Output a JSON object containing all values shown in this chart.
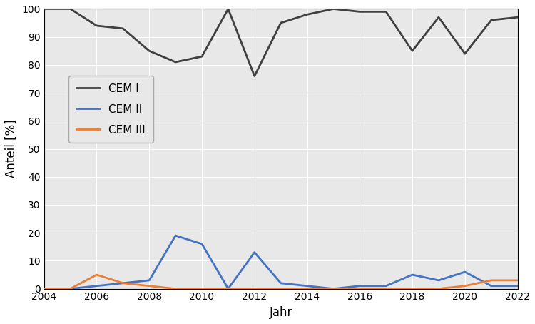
{
  "years_cem1": [
    2004,
    2005,
    2006,
    2007,
    2008,
    2009,
    2010,
    2011,
    2012,
    2013,
    2014,
    2015,
    2016,
    2017,
    2018,
    2019,
    2020,
    2021,
    2022
  ],
  "cem1": [
    100,
    100,
    94,
    93,
    85,
    81,
    83,
    100,
    76,
    95,
    98,
    100,
    99,
    99,
    85,
    97,
    84,
    96,
    97
  ],
  "years_cem2": [
    2004,
    2005,
    2006,
    2007,
    2008,
    2009,
    2010,
    2011,
    2012,
    2013,
    2014,
    2015,
    2016,
    2017,
    2018,
    2019,
    2020,
    2021,
    2022
  ],
  "cem2": [
    0,
    0,
    1,
    2,
    3,
    19,
    16,
    0,
    13,
    2,
    1,
    0,
    1,
    1,
    5,
    3,
    6,
    1,
    1
  ],
  "years_cem3": [
    2004,
    2005,
    2006,
    2007,
    2008,
    2009,
    2010,
    2011,
    2012,
    2013,
    2014,
    2015,
    2016,
    2017,
    2018,
    2019,
    2020,
    2021,
    2022
  ],
  "cem3": [
    0,
    0,
    5,
    2,
    1,
    0,
    0,
    0,
    0,
    0,
    0,
    0,
    0,
    0,
    0,
    0,
    1,
    3,
    3
  ],
  "color_cem1": "#404040",
  "color_cem2": "#4472c4",
  "color_cem3": "#ed7d31",
  "xlabel": "Jahr",
  "ylabel": "Anteil [%]",
  "ylim": [
    0,
    100
  ],
  "yticks": [
    0,
    10,
    20,
    30,
    40,
    50,
    60,
    70,
    80,
    90,
    100
  ],
  "xticks": [
    2004,
    2006,
    2008,
    2010,
    2012,
    2014,
    2016,
    2018,
    2020,
    2022
  ],
  "legend_labels": [
    "CEM I",
    "CEM II",
    "CEM III"
  ],
  "linewidth": 2.0,
  "plot_bg_color": "#e8e8e8",
  "fig_bg_color": "#ffffff",
  "grid_color": "#ffffff",
  "spine_color": "#000000",
  "tick_color": "#000000",
  "label_fontsize": 12,
  "tick_fontsize": 10,
  "legend_fontsize": 11
}
